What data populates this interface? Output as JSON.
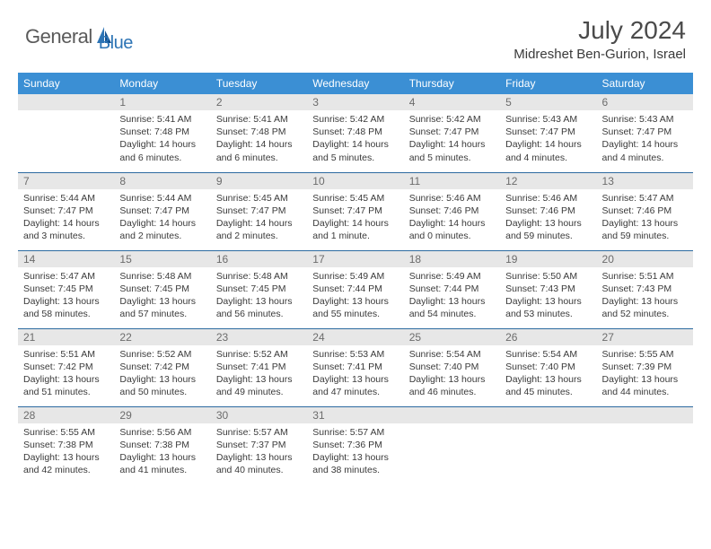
{
  "brand": {
    "name1": "General",
    "name2": "Blue"
  },
  "title": "July 2024",
  "location": "Midreshet Ben-Gurion, Israel",
  "colors": {
    "header_bg": "#3b8fd4",
    "daynum_bg": "#e7e7e7",
    "row_border": "#2c6aa0",
    "text": "#3a3a3a",
    "logo_blue": "#2d74b5"
  },
  "weekdays": [
    "Sunday",
    "Monday",
    "Tuesday",
    "Wednesday",
    "Thursday",
    "Friday",
    "Saturday"
  ],
  "cells": [
    [
      {
        "n": "",
        "t": ""
      },
      {
        "n": "1",
        "t": "Sunrise: 5:41 AM\nSunset: 7:48 PM\nDaylight: 14 hours and 6 minutes."
      },
      {
        "n": "2",
        "t": "Sunrise: 5:41 AM\nSunset: 7:48 PM\nDaylight: 14 hours and 6 minutes."
      },
      {
        "n": "3",
        "t": "Sunrise: 5:42 AM\nSunset: 7:48 PM\nDaylight: 14 hours and 5 minutes."
      },
      {
        "n": "4",
        "t": "Sunrise: 5:42 AM\nSunset: 7:47 PM\nDaylight: 14 hours and 5 minutes."
      },
      {
        "n": "5",
        "t": "Sunrise: 5:43 AM\nSunset: 7:47 PM\nDaylight: 14 hours and 4 minutes."
      },
      {
        "n": "6",
        "t": "Sunrise: 5:43 AM\nSunset: 7:47 PM\nDaylight: 14 hours and 4 minutes."
      }
    ],
    [
      {
        "n": "7",
        "t": "Sunrise: 5:44 AM\nSunset: 7:47 PM\nDaylight: 14 hours and 3 minutes."
      },
      {
        "n": "8",
        "t": "Sunrise: 5:44 AM\nSunset: 7:47 PM\nDaylight: 14 hours and 2 minutes."
      },
      {
        "n": "9",
        "t": "Sunrise: 5:45 AM\nSunset: 7:47 PM\nDaylight: 14 hours and 2 minutes."
      },
      {
        "n": "10",
        "t": "Sunrise: 5:45 AM\nSunset: 7:47 PM\nDaylight: 14 hours and 1 minute."
      },
      {
        "n": "11",
        "t": "Sunrise: 5:46 AM\nSunset: 7:46 PM\nDaylight: 14 hours and 0 minutes."
      },
      {
        "n": "12",
        "t": "Sunrise: 5:46 AM\nSunset: 7:46 PM\nDaylight: 13 hours and 59 minutes."
      },
      {
        "n": "13",
        "t": "Sunrise: 5:47 AM\nSunset: 7:46 PM\nDaylight: 13 hours and 59 minutes."
      }
    ],
    [
      {
        "n": "14",
        "t": "Sunrise: 5:47 AM\nSunset: 7:45 PM\nDaylight: 13 hours and 58 minutes."
      },
      {
        "n": "15",
        "t": "Sunrise: 5:48 AM\nSunset: 7:45 PM\nDaylight: 13 hours and 57 minutes."
      },
      {
        "n": "16",
        "t": "Sunrise: 5:48 AM\nSunset: 7:45 PM\nDaylight: 13 hours and 56 minutes."
      },
      {
        "n": "17",
        "t": "Sunrise: 5:49 AM\nSunset: 7:44 PM\nDaylight: 13 hours and 55 minutes."
      },
      {
        "n": "18",
        "t": "Sunrise: 5:49 AM\nSunset: 7:44 PM\nDaylight: 13 hours and 54 minutes."
      },
      {
        "n": "19",
        "t": "Sunrise: 5:50 AM\nSunset: 7:43 PM\nDaylight: 13 hours and 53 minutes."
      },
      {
        "n": "20",
        "t": "Sunrise: 5:51 AM\nSunset: 7:43 PM\nDaylight: 13 hours and 52 minutes."
      }
    ],
    [
      {
        "n": "21",
        "t": "Sunrise: 5:51 AM\nSunset: 7:42 PM\nDaylight: 13 hours and 51 minutes."
      },
      {
        "n": "22",
        "t": "Sunrise: 5:52 AM\nSunset: 7:42 PM\nDaylight: 13 hours and 50 minutes."
      },
      {
        "n": "23",
        "t": "Sunrise: 5:52 AM\nSunset: 7:41 PM\nDaylight: 13 hours and 49 minutes."
      },
      {
        "n": "24",
        "t": "Sunrise: 5:53 AM\nSunset: 7:41 PM\nDaylight: 13 hours and 47 minutes."
      },
      {
        "n": "25",
        "t": "Sunrise: 5:54 AM\nSunset: 7:40 PM\nDaylight: 13 hours and 46 minutes."
      },
      {
        "n": "26",
        "t": "Sunrise: 5:54 AM\nSunset: 7:40 PM\nDaylight: 13 hours and 45 minutes."
      },
      {
        "n": "27",
        "t": "Sunrise: 5:55 AM\nSunset: 7:39 PM\nDaylight: 13 hours and 44 minutes."
      }
    ],
    [
      {
        "n": "28",
        "t": "Sunrise: 5:55 AM\nSunset: 7:38 PM\nDaylight: 13 hours and 42 minutes."
      },
      {
        "n": "29",
        "t": "Sunrise: 5:56 AM\nSunset: 7:38 PM\nDaylight: 13 hours and 41 minutes."
      },
      {
        "n": "30",
        "t": "Sunrise: 5:57 AM\nSunset: 7:37 PM\nDaylight: 13 hours and 40 minutes."
      },
      {
        "n": "31",
        "t": "Sunrise: 5:57 AM\nSunset: 7:36 PM\nDaylight: 13 hours and 38 minutes."
      },
      {
        "n": "",
        "t": ""
      },
      {
        "n": "",
        "t": ""
      },
      {
        "n": "",
        "t": ""
      }
    ]
  ]
}
